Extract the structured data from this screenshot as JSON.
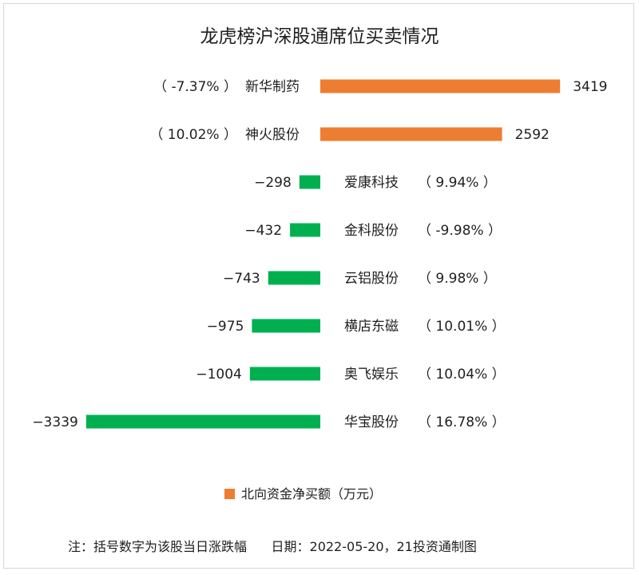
{
  "chart_data": {
    "type": "bar",
    "orientation": "horizontal",
    "title": "龙虎榜沪深股通席位买卖情况",
    "series": [
      {
        "name": "北向资金净买额（万元）",
        "color": "#ed7d31"
      }
    ],
    "negative_color": "#00b050",
    "rows": [
      {
        "stock": "新华制药",
        "value": 3419,
        "change": "-7.37%"
      },
      {
        "stock": "神火股份",
        "value": 2592,
        "change": "10.02%"
      },
      {
        "stock": "爱康科技",
        "value": -298,
        "change": "9.94%"
      },
      {
        "stock": "金科股份",
        "value": -432,
        "change": "-9.98%"
      },
      {
        "stock": "云铝股份",
        "value": -743,
        "change": "9.98%"
      },
      {
        "stock": "横店东磁",
        "value": -975,
        "change": "10.01%"
      },
      {
        "stock": "奥飞娱乐",
        "value": -1004,
        "change": "10.04%"
      },
      {
        "stock": "华宝股份",
        "value": -3339,
        "change": "16.78%"
      }
    ],
    "legend_position": "bottom"
  },
  "footnote": "注：括号数字为该股当日涨跌幅      日期：2022-05-20，21投资通制图"
}
